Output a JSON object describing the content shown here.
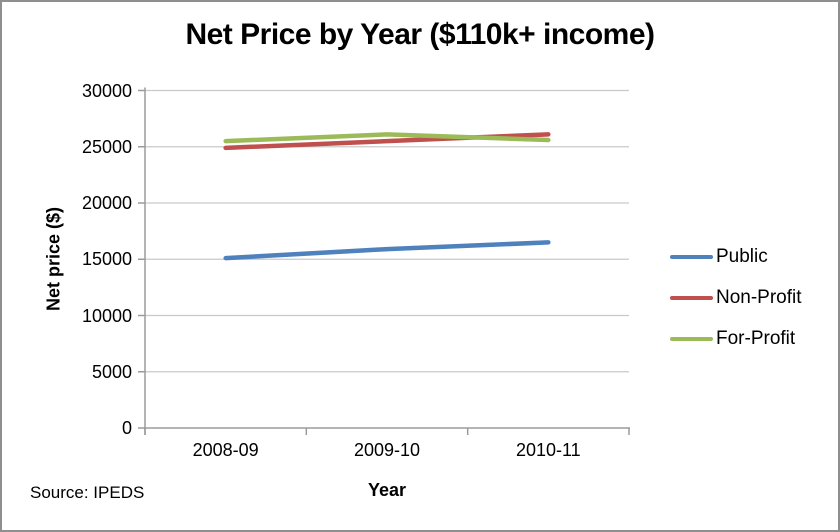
{
  "window": {
    "background": "#ffffff",
    "border_color": "#8f8f8f"
  },
  "chart_data": {
    "type": "line",
    "title": "Net Price by Year ($110k+ income)",
    "xlabel": "Year",
    "ylabel": "Net price ($)",
    "categories": [
      "2008-09",
      "2009-10",
      "2010-11"
    ],
    "series": [
      {
        "name": "Public",
        "color": "#4F81BD",
        "values": [
          15100,
          15900,
          16500
        ]
      },
      {
        "name": "Non-Profit",
        "color": "#C0504D",
        "values": [
          24900,
          25500,
          26100
        ]
      },
      {
        "name": "For-Profit",
        "color": "#9BBB59",
        "values": [
          25500,
          26100,
          25600
        ]
      }
    ],
    "ylim": [
      0,
      30000
    ],
    "y_tick_step": 5000,
    "y_tick_labels": [
      "0",
      "5000",
      "10000",
      "15000",
      "20000",
      "25000",
      "30000"
    ],
    "grid": "horizontal",
    "legend_position": "right",
    "axis_color": "#9b9b9b",
    "gridline_color": "#c9c9c9"
  },
  "footer": {
    "source_note": "Source: IPEDS"
  }
}
